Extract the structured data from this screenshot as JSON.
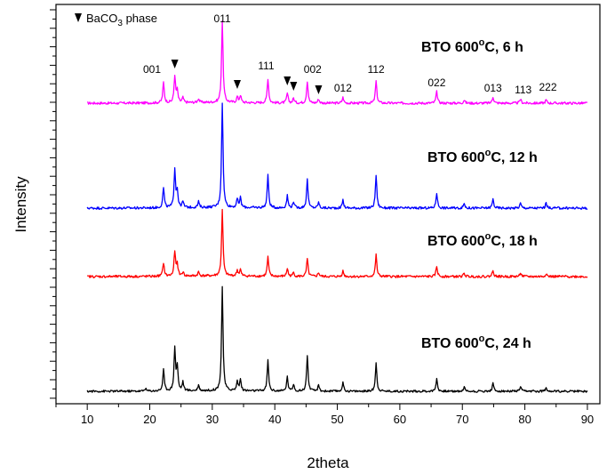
{
  "chart_data": {
    "type": "line",
    "xlabel": "2theta",
    "ylabel": "Intensity",
    "xlim": [
      5,
      92
    ],
    "xticks": [
      "10",
      "20",
      "30",
      "40",
      "50",
      "60",
      "70",
      "80",
      "90"
    ],
    "legend": {
      "marker": "inverted-triangle",
      "text": "BaCO",
      "sub": "3",
      "suffix": " phase",
      "position": "top-left"
    },
    "peak_labels": [
      {
        "x": 22.2,
        "text": "001"
      },
      {
        "x": 31.6,
        "text": "011"
      },
      {
        "x": 38.9,
        "text": "111"
      },
      {
        "x": 45.2,
        "text": "002"
      },
      {
        "x": 50.9,
        "text": "012"
      },
      {
        "x": 56.2,
        "text": "112"
      },
      {
        "x": 65.9,
        "text": "022"
      },
      {
        "x": 74.9,
        "text": "013"
      },
      {
        "x": 79.3,
        "text": "113"
      },
      {
        "x": 83.4,
        "text": "222"
      }
    ],
    "baco3_markers": [
      24.0,
      34.0,
      42.0,
      43.0,
      47.0
    ],
    "series": [
      {
        "name": "BTO 600°C, 6 h",
        "name_parts": {
          "prefix": "BTO 600",
          "sup": "o",
          "suffix": "C, 6 h"
        },
        "color": "#ff00ff",
        "baseline": 1.0,
        "peaks": [
          {
            "x": 22.2,
            "h": 0.25
          },
          {
            "x": 24.0,
            "h": 0.33
          },
          {
            "x": 24.4,
            "h": 0.14
          },
          {
            "x": 25.3,
            "h": 0.06
          },
          {
            "x": 27.8,
            "h": 0.05
          },
          {
            "x": 31.6,
            "h": 1.0
          },
          {
            "x": 34.0,
            "h": 0.07
          },
          {
            "x": 34.5,
            "h": 0.09
          },
          {
            "x": 38.9,
            "h": 0.3
          },
          {
            "x": 42.0,
            "h": 0.12
          },
          {
            "x": 43.0,
            "h": 0.06
          },
          {
            "x": 45.2,
            "h": 0.27
          },
          {
            "x": 47.0,
            "h": 0.05
          },
          {
            "x": 50.9,
            "h": 0.07
          },
          {
            "x": 56.2,
            "h": 0.27
          },
          {
            "x": 65.9,
            "h": 0.14
          },
          {
            "x": 70.3,
            "h": 0.04
          },
          {
            "x": 74.9,
            "h": 0.08
          },
          {
            "x": 79.3,
            "h": 0.05
          },
          {
            "x": 83.4,
            "h": 0.04
          }
        ]
      },
      {
        "name": "BTO 600°C, 12 h",
        "name_parts": {
          "prefix": "BTO 600",
          "sup": "o",
          "suffix": "C, 12 h"
        },
        "color": "#0000ff",
        "baseline": 0.0,
        "peaks": [
          {
            "x": 22.2,
            "h": 0.25
          },
          {
            "x": 24.0,
            "h": 0.48
          },
          {
            "x": 24.4,
            "h": 0.2
          },
          {
            "x": 25.3,
            "h": 0.07
          },
          {
            "x": 27.8,
            "h": 0.07
          },
          {
            "x": 31.6,
            "h": 1.3
          },
          {
            "x": 34.0,
            "h": 0.1
          },
          {
            "x": 34.5,
            "h": 0.12
          },
          {
            "x": 38.9,
            "h": 0.4
          },
          {
            "x": 42.0,
            "h": 0.15
          },
          {
            "x": 43.0,
            "h": 0.08
          },
          {
            "x": 45.2,
            "h": 0.35
          },
          {
            "x": 47.0,
            "h": 0.07
          },
          {
            "x": 50.9,
            "h": 0.1
          },
          {
            "x": 56.2,
            "h": 0.41
          },
          {
            "x": 65.9,
            "h": 0.19
          },
          {
            "x": 70.3,
            "h": 0.06
          },
          {
            "x": 74.9,
            "h": 0.11
          },
          {
            "x": 79.3,
            "h": 0.06
          },
          {
            "x": 83.4,
            "h": 0.06
          }
        ]
      },
      {
        "name": "BTO 600°C, 18 h",
        "name_parts": {
          "prefix": "BTO 600",
          "sup": "o",
          "suffix": "C, 18 h"
        },
        "color": "#ff0000",
        "baseline": -0.95,
        "peaks": [
          {
            "x": 22.2,
            "h": 0.17
          },
          {
            "x": 24.0,
            "h": 0.31
          },
          {
            "x": 24.4,
            "h": 0.14
          },
          {
            "x": 25.3,
            "h": 0.05
          },
          {
            "x": 27.8,
            "h": 0.05
          },
          {
            "x": 31.6,
            "h": 0.82
          },
          {
            "x": 34.0,
            "h": 0.07
          },
          {
            "x": 34.5,
            "h": 0.08
          },
          {
            "x": 38.9,
            "h": 0.24
          },
          {
            "x": 42.0,
            "h": 0.1
          },
          {
            "x": 43.0,
            "h": 0.05
          },
          {
            "x": 45.2,
            "h": 0.22
          },
          {
            "x": 47.0,
            "h": 0.05
          },
          {
            "x": 50.9,
            "h": 0.07
          },
          {
            "x": 56.2,
            "h": 0.27
          },
          {
            "x": 65.9,
            "h": 0.13
          },
          {
            "x": 70.3,
            "h": 0.04
          },
          {
            "x": 74.9,
            "h": 0.08
          },
          {
            "x": 79.3,
            "h": 0.05
          },
          {
            "x": 83.4,
            "h": 0.04
          }
        ]
      },
      {
        "name": "BTO 600°C, 24 h",
        "name_parts": {
          "prefix": "BTO 600",
          "sup": "o",
          "suffix": "C, 24 h"
        },
        "color": "#000000",
        "baseline": -2.6,
        "peaks": [
          {
            "x": 19.3,
            "h": 0.04
          },
          {
            "x": 22.2,
            "h": 0.3
          },
          {
            "x": 24.0,
            "h": 0.6
          },
          {
            "x": 24.4,
            "h": 0.33
          },
          {
            "x": 25.3,
            "h": 0.12
          },
          {
            "x": 27.8,
            "h": 0.08
          },
          {
            "x": 31.6,
            "h": 1.46
          },
          {
            "x": 34.0,
            "h": 0.13
          },
          {
            "x": 34.5,
            "h": 0.16
          },
          {
            "x": 38.9,
            "h": 0.43
          },
          {
            "x": 42.0,
            "h": 0.2
          },
          {
            "x": 43.0,
            "h": 0.1
          },
          {
            "x": 45.2,
            "h": 0.5
          },
          {
            "x": 47.0,
            "h": 0.08
          },
          {
            "x": 50.9,
            "h": 0.12
          },
          {
            "x": 56.2,
            "h": 0.4
          },
          {
            "x": 65.9,
            "h": 0.18
          },
          {
            "x": 70.3,
            "h": 0.06
          },
          {
            "x": 74.9,
            "h": 0.11
          },
          {
            "x": 79.3,
            "h": 0.06
          },
          {
            "x": 83.4,
            "h": 0.06
          }
        ]
      }
    ]
  }
}
